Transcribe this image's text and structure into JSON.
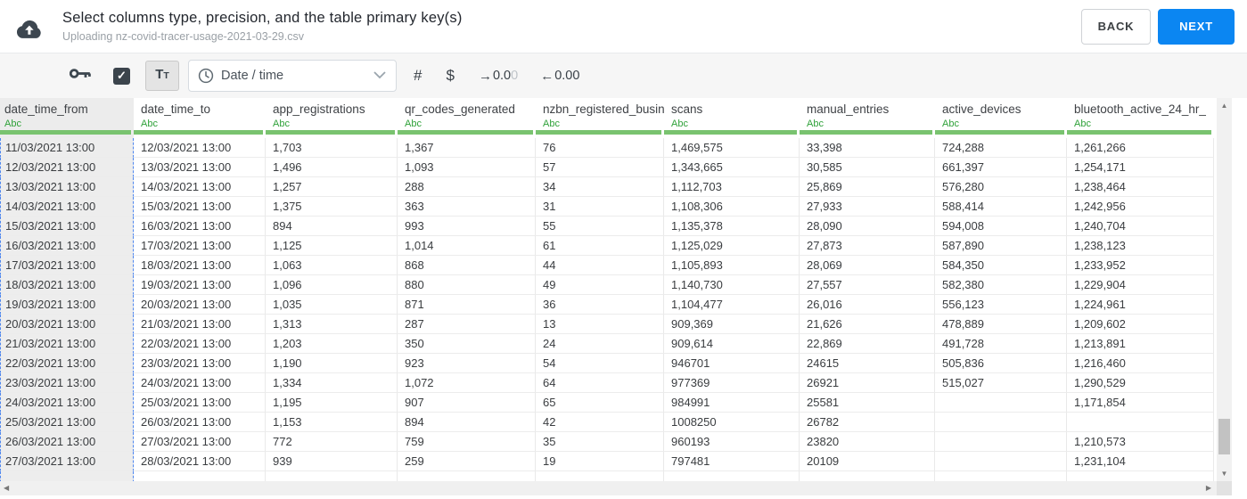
{
  "header": {
    "title": "Select columns type, precision, and the table primary key(s)",
    "subtitle": "Uploading nz-covid-tracer-usage-2021-03-29.csv",
    "back_label": "BACK",
    "next_label": "NEXT"
  },
  "toolbar": {
    "checkbox_checked": true,
    "checkmark": "✓",
    "text_type_big": "T",
    "text_type_small": "T",
    "type_dropdown_value": "Date / time",
    "number_label": "#",
    "currency_label": "$",
    "precision_increase": {
      "arrow": "→",
      "digits": "0.0",
      "faded": "0"
    },
    "precision_decrease": {
      "arrow": "←",
      "digits": "0.00",
      "faded": ""
    },
    "icons": [
      "key-icon",
      "checkbox-check-icon",
      "text-type-icon",
      "clock-icon",
      "chevron-down-icon",
      "number-icon",
      "currency-icon"
    ]
  },
  "table": {
    "columns": [
      {
        "name": "date_time_from",
        "type": "Abc",
        "selected": true
      },
      {
        "name": "date_time_to",
        "type": "Abc",
        "selected": false
      },
      {
        "name": "app_registrations",
        "type": "Abc",
        "selected": false
      },
      {
        "name": "qr_codes_generated",
        "type": "Abc",
        "selected": false
      },
      {
        "name": "nzbn_registered_busine",
        "type": "Abc",
        "selected": false
      },
      {
        "name": "scans",
        "type": "Abc",
        "selected": false
      },
      {
        "name": "manual_entries",
        "type": "Abc",
        "selected": false
      },
      {
        "name": "active_devices",
        "type": "Abc",
        "selected": false
      },
      {
        "name": "bluetooth_active_24_hr_",
        "type": "Abc",
        "selected": false
      }
    ],
    "rows": [
      [
        "11/03/2021 13:00",
        "12/03/2021 13:00",
        "1,703",
        "1,367",
        "76",
        "1,469,575",
        "33,398",
        "724,288",
        "1,261,266"
      ],
      [
        "12/03/2021 13:00",
        "13/03/2021 13:00",
        "1,496",
        "1,093",
        "57",
        "1,343,665",
        "30,585",
        "661,397",
        "1,254,171"
      ],
      [
        "13/03/2021 13:00",
        "14/03/2021 13:00",
        "1,257",
        "288",
        "34",
        "1,112,703",
        "25,869",
        "576,280",
        "1,238,464"
      ],
      [
        "14/03/2021 13:00",
        "15/03/2021 13:00",
        "1,375",
        "363",
        "31",
        "1,108,306",
        "27,933",
        "588,414",
        "1,242,956"
      ],
      [
        "15/03/2021 13:00",
        "16/03/2021 13:00",
        "894",
        "993",
        "55",
        "1,135,378",
        "28,090",
        "594,008",
        "1,240,704"
      ],
      [
        "16/03/2021 13:00",
        "17/03/2021 13:00",
        "1,125",
        "1,014",
        "61",
        "1,125,029",
        "27,873",
        "587,890",
        "1,238,123"
      ],
      [
        "17/03/2021 13:00",
        "18/03/2021 13:00",
        "1,063",
        "868",
        "44",
        "1,105,893",
        "28,069",
        "584,350",
        "1,233,952"
      ],
      [
        "18/03/2021 13:00",
        "19/03/2021 13:00",
        "1,096",
        "880",
        "49",
        "1,140,730",
        "27,557",
        "582,380",
        "1,229,904"
      ],
      [
        "19/03/2021 13:00",
        "20/03/2021 13:00",
        "1,035",
        "871",
        "36",
        "1,104,477",
        "26,016",
        "556,123",
        "1,224,961"
      ],
      [
        "20/03/2021 13:00",
        "21/03/2021 13:00",
        "1,313",
        "287",
        "13",
        "909,369",
        "21,626",
        "478,889",
        "1,209,602"
      ],
      [
        "21/03/2021 13:00",
        "22/03/2021 13:00",
        "1,203",
        "350",
        "24",
        "909,614",
        "22,869",
        "491,728",
        "1,213,891"
      ],
      [
        "22/03/2021 13:00",
        "23/03/2021 13:00",
        "1,190",
        "923",
        "54",
        "946701",
        "24615",
        "505,836",
        "1,216,460"
      ],
      [
        "23/03/2021 13:00",
        "24/03/2021 13:00",
        "1,334",
        "1,072",
        "64",
        "977369",
        "26921",
        "515,027",
        "1,290,529"
      ],
      [
        "24/03/2021 13:00",
        "25/03/2021 13:00",
        "1,195",
        "907",
        "65",
        "984991",
        "25581",
        "",
        "1,171,854"
      ],
      [
        "25/03/2021 13:00",
        "26/03/2021 13:00",
        "1,153",
        "894",
        "42",
        "1008250",
        "26782",
        "",
        ""
      ],
      [
        "26/03/2021 13:00",
        "27/03/2021 13:00",
        "772",
        "759",
        "35",
        "960193",
        "23820",
        "",
        "1,210,573"
      ],
      [
        "27/03/2021 13:00",
        "28/03/2021 13:00",
        "939",
        "259",
        "19",
        "797481",
        "20109",
        "",
        "1,231,104"
      ]
    ]
  },
  "colors": {
    "accent_blue": "#0b86f2",
    "type_green": "#2fa139",
    "underline_green": "#79c36f",
    "selected_column_bg": "#ededed",
    "selected_column_dash": "#4f87ee",
    "toolbar_bg": "#f6f6f6",
    "dark_icon": "#3d4750"
  }
}
